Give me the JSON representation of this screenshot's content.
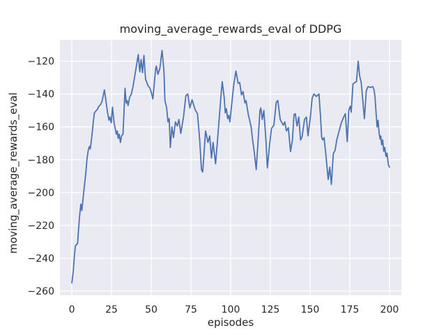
{
  "figure": {
    "background": "#ffffff"
  },
  "chart_data": {
    "type": "line",
    "title": "moving_average_rewards_eval of DDPG",
    "xlabel": "episodes",
    "ylabel": "moving_average_rewards_eval",
    "xlim": [
      -7.5,
      207.5
    ],
    "ylim": [
      -262.5,
      -107
    ],
    "grid": true,
    "legend": "none",
    "x_ticks": {
      "values": [
        0,
        25,
        50,
        75,
        100,
        125,
        150,
        175,
        200
      ],
      "labels": [
        "0",
        "25",
        "50",
        "75",
        "100",
        "125",
        "150",
        "175",
        "200"
      ]
    },
    "y_ticks": {
      "values": [
        -120,
        -140,
        -160,
        -180,
        -200,
        -220,
        -240,
        -260
      ],
      "labels": [
        "−120",
        "−140",
        "−160",
        "−180",
        "−200",
        "−220",
        "−240",
        "−260"
      ]
    },
    "style": {
      "axes_background": "#eaeaf2",
      "grid_color": "#ffffff",
      "line_color": "#4c72b0",
      "text_color": "#262626",
      "line_width": 1.8
    },
    "series": [
      {
        "name": "moving_average_rewards_eval",
        "points": [
          [
            0,
            -255
          ],
          [
            0.9,
            -248
          ],
          [
            1.5,
            -240
          ],
          [
            2.2,
            -232.5
          ],
          [
            3.6,
            -231
          ],
          [
            4.3,
            -221.5
          ],
          [
            5,
            -213
          ],
          [
            5.7,
            -207
          ],
          [
            6.3,
            -211
          ],
          [
            7.5,
            -199.5
          ],
          [
            8.1,
            -194.5
          ],
          [
            8.8,
            -188
          ],
          [
            9.6,
            -179
          ],
          [
            10.4,
            -174
          ],
          [
            11,
            -172
          ],
          [
            11.6,
            -173.5
          ],
          [
            12.2,
            -169
          ],
          [
            13,
            -162
          ],
          [
            13.5,
            -157
          ],
          [
            14.2,
            -151.5
          ],
          [
            15,
            -150.5
          ],
          [
            16,
            -149.5
          ],
          [
            17,
            -147.5
          ],
          [
            18,
            -146.5
          ],
          [
            19,
            -144.5
          ],
          [
            20.5,
            -137.5
          ],
          [
            21.6,
            -145
          ],
          [
            22.5,
            -151.5
          ],
          [
            23.4,
            -156
          ],
          [
            23.9,
            -154
          ],
          [
            24.8,
            -157.5
          ],
          [
            25.6,
            -148
          ],
          [
            26.6,
            -157.5
          ],
          [
            28,
            -164.5
          ],
          [
            28.6,
            -162.5
          ],
          [
            29.2,
            -167
          ],
          [
            29.8,
            -164.5
          ],
          [
            30.6,
            -169.5
          ],
          [
            31.3,
            -165.5
          ],
          [
            32.2,
            -164.5
          ],
          [
            33.5,
            -136.5
          ],
          [
            34.2,
            -145.5
          ],
          [
            34.8,
            -144
          ],
          [
            35.4,
            -147
          ],
          [
            36.4,
            -142
          ],
          [
            37.5,
            -140
          ],
          [
            38.5,
            -135.5
          ],
          [
            40.3,
            -125
          ],
          [
            41.8,
            -116
          ],
          [
            42.8,
            -126.5
          ],
          [
            43.6,
            -119
          ],
          [
            44.5,
            -127
          ],
          [
            45.4,
            -116.5
          ],
          [
            46.4,
            -131
          ],
          [
            48,
            -135
          ],
          [
            49.2,
            -136.5
          ],
          [
            50,
            -139
          ],
          [
            51,
            -143
          ],
          [
            52.8,
            -124.5
          ],
          [
            53.2,
            -123
          ],
          [
            54.2,
            -128
          ],
          [
            55.4,
            -124.5
          ],
          [
            56.8,
            -113.5
          ],
          [
            58,
            -126
          ],
          [
            58.6,
            -144
          ],
          [
            59.7,
            -148.5
          ],
          [
            60.5,
            -157
          ],
          [
            61.3,
            -155
          ],
          [
            62,
            -172.5
          ],
          [
            63,
            -160
          ],
          [
            64,
            -166.5
          ],
          [
            65.2,
            -157
          ],
          [
            66.4,
            -159.5
          ],
          [
            67.4,
            -155.5
          ],
          [
            68.6,
            -164
          ],
          [
            70.3,
            -154
          ],
          [
            71.8,
            -141
          ],
          [
            73,
            -140
          ],
          [
            74.3,
            -148.5
          ],
          [
            75.7,
            -143.5
          ],
          [
            77.6,
            -149.5
          ],
          [
            79.1,
            -152
          ],
          [
            80.5,
            -168
          ],
          [
            81.6,
            -186
          ],
          [
            82.4,
            -187.5
          ],
          [
            84.2,
            -162.5
          ],
          [
            85.7,
            -169.5
          ],
          [
            86.8,
            -165.5
          ],
          [
            87.9,
            -179
          ],
          [
            88.9,
            -169.5
          ],
          [
            90.5,
            -182.5
          ],
          [
            92.3,
            -161
          ],
          [
            93.7,
            -143.5
          ],
          [
            94.7,
            -132.5
          ],
          [
            95.9,
            -142
          ],
          [
            96.6,
            -151.5
          ],
          [
            97.3,
            -149
          ],
          [
            98.1,
            -155
          ],
          [
            98.8,
            -153
          ],
          [
            99.5,
            -157
          ],
          [
            101,
            -143
          ],
          [
            102,
            -134
          ],
          [
            103.3,
            -126
          ],
          [
            104.7,
            -133.5
          ],
          [
            105.7,
            -133
          ],
          [
            106.8,
            -140.5
          ],
          [
            107.8,
            -138.5
          ],
          [
            109,
            -145.5
          ],
          [
            109.7,
            -144
          ],
          [
            111.1,
            -152.5
          ],
          [
            112.9,
            -160
          ],
          [
            113.7,
            -167
          ],
          [
            114.4,
            -172
          ],
          [
            115,
            -176.5
          ],
          [
            116.1,
            -186
          ],
          [
            117.3,
            -168
          ],
          [
            118.4,
            -150.5
          ],
          [
            119,
            -148.5
          ],
          [
            119.9,
            -155.5
          ],
          [
            120.9,
            -150
          ],
          [
            122.1,
            -166.5
          ],
          [
            123.1,
            -185
          ],
          [
            124.6,
            -170
          ],
          [
            125.7,
            -161
          ],
          [
            127.2,
            -159
          ],
          [
            128.7,
            -145
          ],
          [
            129.7,
            -144
          ],
          [
            131.2,
            -155.5
          ],
          [
            133.1,
            -159
          ],
          [
            134.1,
            -157
          ],
          [
            135.1,
            -162.5
          ],
          [
            136.3,
            -160.5
          ],
          [
            137.7,
            -175
          ],
          [
            138.9,
            -168
          ],
          [
            139.9,
            -152.5
          ],
          [
            140.7,
            -152
          ],
          [
            141.8,
            -159.5
          ],
          [
            142.9,
            -154
          ],
          [
            144,
            -168
          ],
          [
            145,
            -166
          ],
          [
            146.5,
            -155.5
          ],
          [
            147.7,
            -154
          ],
          [
            148.7,
            -165.5
          ],
          [
            150.2,
            -154
          ],
          [
            151.3,
            -142.5
          ],
          [
            152.4,
            -140
          ],
          [
            154,
            -141.5
          ],
          [
            155.6,
            -140
          ],
          [
            156.6,
            -154
          ],
          [
            157.3,
            -166.5
          ],
          [
            158,
            -168
          ],
          [
            158.8,
            -166.5
          ],
          [
            159.9,
            -176.5
          ],
          [
            161.4,
            -192
          ],
          [
            162.4,
            -184.5
          ],
          [
            163.4,
            -195
          ],
          [
            164.6,
            -176.5
          ],
          [
            165.8,
            -174
          ],
          [
            166.8,
            -168
          ],
          [
            168.3,
            -162.5
          ],
          [
            169.7,
            -157.5
          ],
          [
            171.2,
            -154
          ],
          [
            172.2,
            -152
          ],
          [
            173.4,
            -169
          ],
          [
            174.4,
            -150
          ],
          [
            175.3,
            -147.5
          ],
          [
            175.9,
            -151
          ],
          [
            177,
            -134
          ],
          [
            178.2,
            -133
          ],
          [
            179.2,
            -132.5
          ],
          [
            180.3,
            -120
          ],
          [
            181.2,
            -129
          ],
          [
            182.2,
            -133
          ],
          [
            183.2,
            -144
          ],
          [
            184.2,
            -155
          ],
          [
            185.4,
            -138
          ],
          [
            186.5,
            -135.5
          ],
          [
            188,
            -136
          ],
          [
            189.5,
            -135.5
          ],
          [
            190.3,
            -137.5
          ],
          [
            190.9,
            -142
          ],
          [
            191.6,
            -152
          ],
          [
            192.2,
            -160
          ],
          [
            192.8,
            -156
          ],
          [
            193.5,
            -164
          ],
          [
            194.1,
            -167.5
          ],
          [
            194.5,
            -165.5
          ],
          [
            195.1,
            -171
          ],
          [
            195.7,
            -168
          ],
          [
            196.4,
            -175
          ],
          [
            197,
            -172.5
          ],
          [
            197.8,
            -178
          ],
          [
            198.4,
            -176
          ],
          [
            199.3,
            -183
          ],
          [
            200,
            -184.5
          ]
        ]
      }
    ]
  }
}
